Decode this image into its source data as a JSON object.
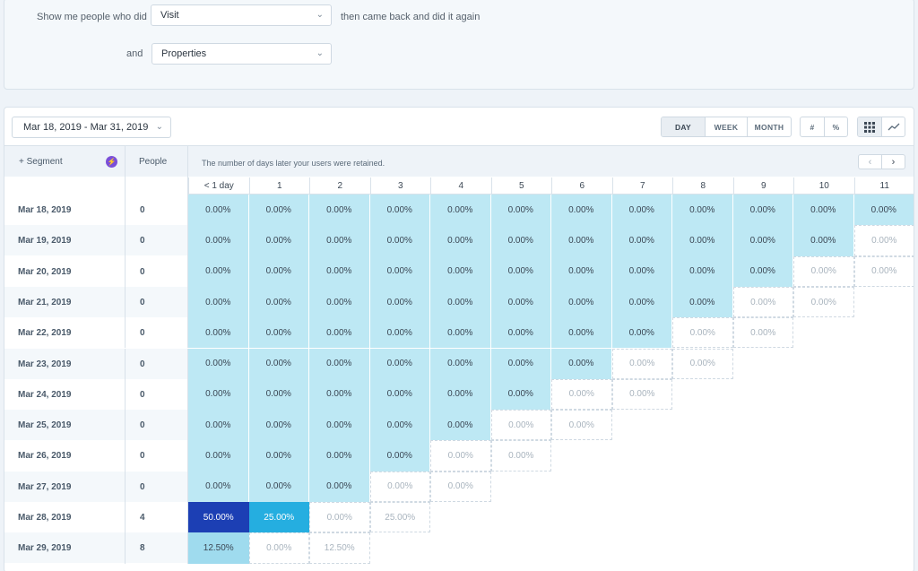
{
  "query": {
    "prefix": "Show me people who did",
    "event": "Visit",
    "suffix": "then came back and did it again",
    "and_label": "and",
    "properties": "Properties"
  },
  "toolbar": {
    "date_range": "Mar 18, 2019 - Mar 31, 2019",
    "interval": [
      "DAY",
      "WEEK",
      "MONTH"
    ],
    "interval_active": "DAY",
    "mode": [
      "#",
      "%"
    ]
  },
  "table": {
    "segment_label": "+ Segment",
    "people_label": "People",
    "retained_note": "The number of days later your users were retained.",
    "columns": [
      "< 1 day",
      "1",
      "2",
      "3",
      "4",
      "5",
      "6",
      "7",
      "8",
      "9",
      "10",
      "11"
    ],
    "rows": [
      {
        "date": "Mar 18, 2019",
        "people": "0",
        "values": [
          "0.00%",
          "0.00%",
          "0.00%",
          "0.00%",
          "0.00%",
          "0.00%",
          "0.00%",
          "0.00%",
          "0.00%",
          "0.00%",
          "0.00%",
          "0.00%"
        ],
        "filled": 12
      },
      {
        "date": "Mar 19, 2019",
        "people": "0",
        "values": [
          "0.00%",
          "0.00%",
          "0.00%",
          "0.00%",
          "0.00%",
          "0.00%",
          "0.00%",
          "0.00%",
          "0.00%",
          "0.00%",
          "0.00%",
          "0.00%"
        ],
        "filled": 11
      },
      {
        "date": "Mar 20, 2019",
        "people": "0",
        "values": [
          "0.00%",
          "0.00%",
          "0.00%",
          "0.00%",
          "0.00%",
          "0.00%",
          "0.00%",
          "0.00%",
          "0.00%",
          "0.00%",
          "0.00%",
          "0.00%"
        ],
        "filled": 10
      },
      {
        "date": "Mar 21, 2019",
        "people": "0",
        "values": [
          "0.00%",
          "0.00%",
          "0.00%",
          "0.00%",
          "0.00%",
          "0.00%",
          "0.00%",
          "0.00%",
          "0.00%",
          "0.00%",
          "0.00%"
        ],
        "filled": 9
      },
      {
        "date": "Mar 22, 2019",
        "people": "0",
        "values": [
          "0.00%",
          "0.00%",
          "0.00%",
          "0.00%",
          "0.00%",
          "0.00%",
          "0.00%",
          "0.00%",
          "0.00%",
          "0.00%"
        ],
        "filled": 8
      },
      {
        "date": "Mar 23, 2019",
        "people": "0",
        "values": [
          "0.00%",
          "0.00%",
          "0.00%",
          "0.00%",
          "0.00%",
          "0.00%",
          "0.00%",
          "0.00%",
          "0.00%"
        ],
        "filled": 7
      },
      {
        "date": "Mar 24, 2019",
        "people": "0",
        "values": [
          "0.00%",
          "0.00%",
          "0.00%",
          "0.00%",
          "0.00%",
          "0.00%",
          "0.00%",
          "0.00%"
        ],
        "filled": 6
      },
      {
        "date": "Mar 25, 2019",
        "people": "0",
        "values": [
          "0.00%",
          "0.00%",
          "0.00%",
          "0.00%",
          "0.00%",
          "0.00%",
          "0.00%"
        ],
        "filled": 5
      },
      {
        "date": "Mar 26, 2019",
        "people": "0",
        "values": [
          "0.00%",
          "0.00%",
          "0.00%",
          "0.00%",
          "0.00%",
          "0.00%"
        ],
        "filled": 4
      },
      {
        "date": "Mar 27, 2019",
        "people": "0",
        "values": [
          "0.00%",
          "0.00%",
          "0.00%",
          "0.00%",
          "0.00%"
        ],
        "filled": 3
      },
      {
        "date": "Mar 28, 2019",
        "people": "4",
        "values": [
          "50.00%",
          "25.00%",
          "0.00%",
          "25.00%"
        ],
        "filled": 2,
        "levels": [
          "high",
          "mid",
          "empty",
          "empty"
        ]
      },
      {
        "date": "Mar 29, 2019",
        "people": "8",
        "values": [
          "12.50%",
          "0.00%",
          "12.50%"
        ],
        "filled": 1,
        "levels": [
          "low",
          "empty",
          "empty"
        ]
      }
    ]
  },
  "colors": {
    "fill": "#bde8f4",
    "high": "#1c3fb4",
    "mid": "#25aee0",
    "low": "#9fdbee",
    "segment_bolt": "#7b4fd8"
  }
}
